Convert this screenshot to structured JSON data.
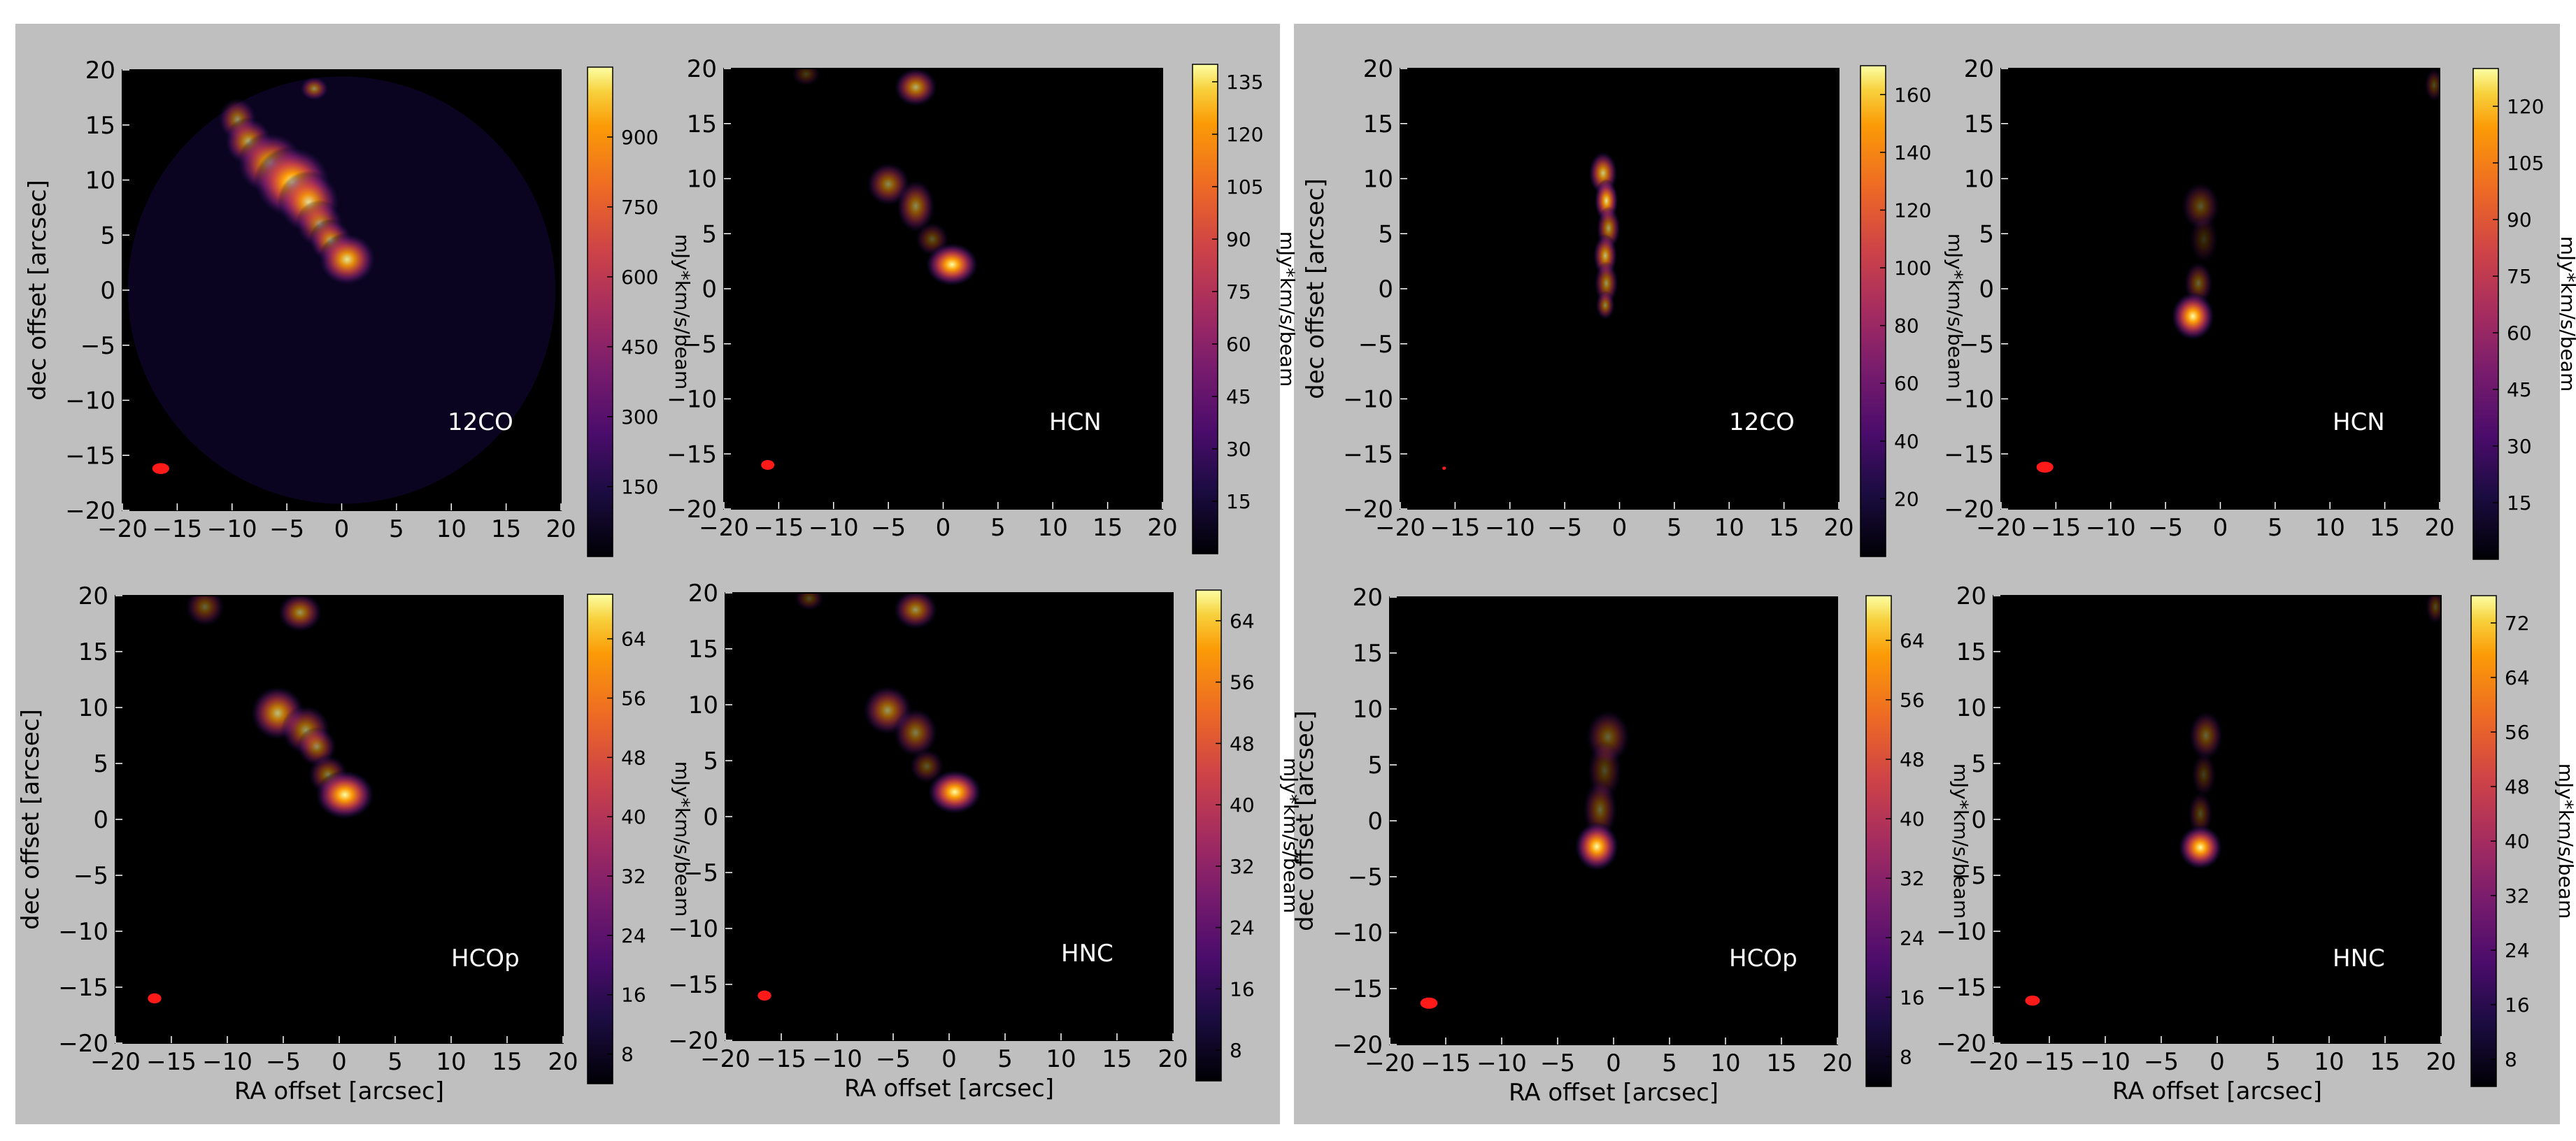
{
  "axis_units": {
    "x_label": "RA offset [arcsec]",
    "y_label": "dec offset [arcsec]",
    "colorbar_label": "mJy*km/s/beam"
  },
  "chart_data": [
    {
      "type": "heatmap",
      "group": "left",
      "row": 0,
      "col": 0,
      "label": "12CO",
      "xlabel": "",
      "ylabel": "dec offset [arcsec]",
      "xlim": [
        -20,
        20
      ],
      "ylim": [
        -20,
        20
      ],
      "x_ticks": [
        "−20",
        "−15",
        "−10",
        "−5",
        "0",
        "5",
        "10",
        "15",
        "20"
      ],
      "y_ticks": [
        "20",
        "15",
        "10",
        "5",
        "0",
        "−5",
        "−10",
        "−15",
        "−20"
      ],
      "colorbar": {
        "ticks": [
          "900",
          "750",
          "600",
          "450",
          "300",
          "150"
        ],
        "tick_values": [
          900,
          750,
          600,
          450,
          300,
          150
        ],
        "range": [
          0,
          1050
        ],
        "label": "mJy*km/s/beam"
      },
      "primary_beam_visible": true,
      "beam": {
        "x": -16.5,
        "y": -16.2,
        "major": 1.4,
        "minor": 1.0
      },
      "emission": [
        {
          "x": -9.5,
          "y": 15.5,
          "sx": 0.8,
          "sy": 0.9,
          "a": 0.55
        },
        {
          "x": -8.5,
          "y": 13.5,
          "sx": 1.0,
          "sy": 1.0,
          "a": 0.7
        },
        {
          "x": -6.5,
          "y": 11.5,
          "sx": 1.4,
          "sy": 1.3,
          "a": 0.85
        },
        {
          "x": -4.5,
          "y": 9.8,
          "sx": 1.6,
          "sy": 1.5,
          "a": 1.0
        },
        {
          "x": -3.0,
          "y": 8.0,
          "sx": 1.3,
          "sy": 1.3,
          "a": 0.85
        },
        {
          "x": -2.0,
          "y": 6.0,
          "sx": 1.0,
          "sy": 1.0,
          "a": 0.6
        },
        {
          "x": -1.0,
          "y": 4.5,
          "sx": 0.9,
          "sy": 0.9,
          "a": 0.7
        },
        {
          "x": 0.5,
          "y": 2.8,
          "sx": 1.2,
          "sy": 1.1,
          "a": 0.9
        },
        {
          "x": -2.5,
          "y": 18.3,
          "sx": 0.6,
          "sy": 0.5,
          "a": 0.55
        }
      ]
    },
    {
      "type": "heatmap",
      "group": "left",
      "row": 0,
      "col": 1,
      "label": "HCN",
      "xlabel": "",
      "ylabel": "",
      "xlim": [
        -20,
        20
      ],
      "ylim": [
        -20,
        20
      ],
      "x_ticks": [
        "−20",
        "−15",
        "−10",
        "−5",
        "0",
        "5",
        "10",
        "15",
        "20"
      ],
      "y_ticks": [
        "20",
        "15",
        "10",
        "5",
        "0",
        "−5",
        "−10",
        "−15",
        "−20"
      ],
      "colorbar": {
        "ticks": [
          "135",
          "120",
          "105",
          "90",
          "75",
          "60",
          "45",
          "30",
          "15"
        ],
        "tick_values": [
          135,
          120,
          105,
          90,
          75,
          60,
          45,
          30,
          15
        ],
        "range": [
          0,
          140
        ],
        "label": "mJy*km/s/beam"
      },
      "primary_beam_visible": false,
      "beam": {
        "x": -16.0,
        "y": -16.0,
        "major": 1.1,
        "minor": 0.9
      },
      "emission": [
        {
          "x": -2.5,
          "y": 18.3,
          "sx": 0.9,
          "sy": 0.8,
          "a": 0.7
        },
        {
          "x": -5.0,
          "y": 9.5,
          "sx": 0.9,
          "sy": 0.9,
          "a": 0.55
        },
        {
          "x": -2.5,
          "y": 7.5,
          "sx": 0.8,
          "sy": 1.1,
          "a": 0.55
        },
        {
          "x": -1.0,
          "y": 4.5,
          "sx": 0.7,
          "sy": 0.7,
          "a": 0.35
        },
        {
          "x": 0.8,
          "y": 2.2,
          "sx": 1.1,
          "sy": 0.9,
          "a": 1.0
        },
        {
          "x": -12.5,
          "y": 19.5,
          "sx": 0.6,
          "sy": 0.5,
          "a": 0.25
        }
      ]
    },
    {
      "type": "heatmap",
      "group": "left",
      "row": 1,
      "col": 0,
      "label": "HCOp",
      "xlabel": "RA offset [arcsec]",
      "ylabel": "dec offset [arcsec]",
      "xlim": [
        -20,
        20
      ],
      "ylim": [
        -20,
        20
      ],
      "x_ticks": [
        "−20",
        "−15",
        "−10",
        "−5",
        "0",
        "5",
        "10",
        "15",
        "20"
      ],
      "y_ticks": [
        "20",
        "15",
        "10",
        "5",
        "0",
        "−5",
        "−10",
        "−15",
        "−20"
      ],
      "colorbar": {
        "ticks": [
          "64",
          "56",
          "48",
          "40",
          "32",
          "24",
          "16",
          "8"
        ],
        "tick_values": [
          64,
          56,
          48,
          40,
          32,
          24,
          16,
          8
        ],
        "range": [
          4,
          70
        ],
        "label": "mJy*km/s/beam"
      },
      "primary_beam_visible": false,
      "beam": {
        "x": -16.5,
        "y": -16.0,
        "major": 1.1,
        "minor": 0.9
      },
      "emission": [
        {
          "x": -12.0,
          "y": 19.0,
          "sx": 0.8,
          "sy": 0.8,
          "a": 0.4
        },
        {
          "x": -3.5,
          "y": 18.5,
          "sx": 0.9,
          "sy": 0.8,
          "a": 0.6
        },
        {
          "x": -5.5,
          "y": 9.5,
          "sx": 1.1,
          "sy": 1.1,
          "a": 0.75
        },
        {
          "x": -3.0,
          "y": 8.0,
          "sx": 1.0,
          "sy": 1.0,
          "a": 0.6
        },
        {
          "x": -2.0,
          "y": 6.5,
          "sx": 0.8,
          "sy": 0.8,
          "a": 0.55
        },
        {
          "x": -1.0,
          "y": 4.0,
          "sx": 0.8,
          "sy": 0.8,
          "a": 0.5
        },
        {
          "x": 0.5,
          "y": 2.2,
          "sx": 1.2,
          "sy": 1.0,
          "a": 1.0
        }
      ]
    },
    {
      "type": "heatmap",
      "group": "left",
      "row": 1,
      "col": 1,
      "label": "HNC",
      "xlabel": "RA offset [arcsec]",
      "ylabel": "",
      "xlim": [
        -20,
        20
      ],
      "ylim": [
        -20,
        20
      ],
      "x_ticks": [
        "−20",
        "−15",
        "−10",
        "−5",
        "0",
        "5",
        "10",
        "15",
        "20"
      ],
      "y_ticks": [
        "20",
        "15",
        "10",
        "5",
        "0",
        "−5",
        "−10",
        "−15",
        "−20"
      ],
      "colorbar": {
        "ticks": [
          "64",
          "56",
          "48",
          "40",
          "32",
          "24",
          "16",
          "8"
        ],
        "tick_values": [
          64,
          56,
          48,
          40,
          32,
          24,
          16,
          8
        ],
        "range": [
          4,
          68
        ],
        "label": "mJy*km/s/beam"
      },
      "primary_beam_visible": false,
      "beam": {
        "x": -16.5,
        "y": -16.0,
        "major": 1.1,
        "minor": 0.9
      },
      "emission": [
        {
          "x": -12.5,
          "y": 19.5,
          "sx": 0.6,
          "sy": 0.5,
          "a": 0.3
        },
        {
          "x": -3.0,
          "y": 18.5,
          "sx": 0.9,
          "sy": 0.8,
          "a": 0.6
        },
        {
          "x": -5.5,
          "y": 9.5,
          "sx": 1.0,
          "sy": 1.0,
          "a": 0.6
        },
        {
          "x": -3.0,
          "y": 7.5,
          "sx": 0.9,
          "sy": 1.0,
          "a": 0.5
        },
        {
          "x": -2.0,
          "y": 4.5,
          "sx": 0.7,
          "sy": 0.7,
          "a": 0.35
        },
        {
          "x": 0.5,
          "y": 2.2,
          "sx": 1.1,
          "sy": 0.9,
          "a": 1.0
        }
      ]
    },
    {
      "type": "heatmap",
      "group": "right",
      "row": 0,
      "col": 0,
      "label": "12CO",
      "xlabel": "",
      "ylabel": "dec offset [arcsec]",
      "xlim": [
        -20,
        20
      ],
      "ylim": [
        -20,
        20
      ],
      "x_ticks": [
        "−20",
        "−15",
        "−10",
        "−5",
        "0",
        "5",
        "10",
        "15",
        "20"
      ],
      "y_ticks": [
        "20",
        "15",
        "10",
        "5",
        "0",
        "−5",
        "−10",
        "−15",
        "−20"
      ],
      "colorbar": {
        "ticks": [
          "160",
          "140",
          "120",
          "100",
          "80",
          "60",
          "40",
          "20"
        ],
        "tick_values": [
          160,
          140,
          120,
          100,
          80,
          60,
          40,
          20
        ],
        "range": [
          0,
          170
        ],
        "label": "mJy*km/s/beam"
      },
      "primary_beam_visible": false,
      "beam": {
        "x": -16.0,
        "y": -16.3,
        "major": 0.3,
        "minor": 0.3
      },
      "emission": [
        {
          "x": -1.5,
          "y": 10.5,
          "sx": 0.6,
          "sy": 0.9,
          "a": 0.8
        },
        {
          "x": -1.2,
          "y": 8.0,
          "sx": 0.5,
          "sy": 0.9,
          "a": 0.9
        },
        {
          "x": -1.0,
          "y": 5.5,
          "sx": 0.5,
          "sy": 0.9,
          "a": 0.65
        },
        {
          "x": -1.3,
          "y": 3.0,
          "sx": 0.5,
          "sy": 0.9,
          "a": 0.75
        },
        {
          "x": -1.2,
          "y": 0.5,
          "sx": 0.5,
          "sy": 0.9,
          "a": 0.6
        },
        {
          "x": -1.3,
          "y": -1.5,
          "sx": 0.4,
          "sy": 0.6,
          "a": 0.55
        }
      ]
    },
    {
      "type": "heatmap",
      "group": "right",
      "row": 0,
      "col": 1,
      "label": "HCN",
      "xlabel": "",
      "ylabel": "",
      "xlim": [
        -20,
        20
      ],
      "ylim": [
        -20,
        20
      ],
      "x_ticks": [
        "−20",
        "−15",
        "−10",
        "−5",
        "0",
        "5",
        "10",
        "15",
        "20"
      ],
      "y_ticks": [
        "20",
        "15",
        "10",
        "5",
        "0",
        "−5",
        "−10",
        "−15",
        "−20"
      ],
      "colorbar": {
        "ticks": [
          "120",
          "105",
          "90",
          "75",
          "60",
          "45",
          "30",
          "15"
        ],
        "tick_values": [
          120,
          105,
          90,
          75,
          60,
          45,
          30,
          15
        ],
        "range": [
          0,
          130
        ],
        "label": "mJy*km/s/beam"
      },
      "primary_beam_visible": false,
      "beam": {
        "x": -16.0,
        "y": -16.2,
        "major": 1.4,
        "minor": 1.0
      },
      "emission": [
        {
          "x": -1.8,
          "y": 7.5,
          "sx": 0.8,
          "sy": 1.0,
          "a": 0.35
        },
        {
          "x": -1.5,
          "y": 4.5,
          "sx": 0.6,
          "sy": 1.0,
          "a": 0.2
        },
        {
          "x": -2.0,
          "y": 0.5,
          "sx": 0.6,
          "sy": 0.9,
          "a": 0.4
        },
        {
          "x": -2.5,
          "y": -2.5,
          "sx": 0.9,
          "sy": 1.0,
          "a": 1.0
        },
        {
          "x": 19.5,
          "y": 18.5,
          "sx": 0.4,
          "sy": 0.7,
          "a": 0.3
        }
      ]
    },
    {
      "type": "heatmap",
      "group": "right",
      "row": 1,
      "col": 0,
      "label": "HCOp",
      "xlabel": "RA offset [arcsec]",
      "ylabel": "dec offset [arcsec]",
      "xlim": [
        -20,
        20
      ],
      "ylim": [
        -20,
        20
      ],
      "x_ticks": [
        "−20",
        "−15",
        "−10",
        "−5",
        "0",
        "5",
        "10",
        "15",
        "20"
      ],
      "y_ticks": [
        "20",
        "15",
        "10",
        "5",
        "0",
        "−5",
        "−10",
        "−15",
        "−20"
      ],
      "colorbar": {
        "ticks": [
          "64",
          "56",
          "48",
          "40",
          "32",
          "24",
          "16",
          "8"
        ],
        "tick_values": [
          64,
          56,
          48,
          40,
          32,
          24,
          16,
          8
        ],
        "range": [
          4,
          70
        ],
        "label": "mJy*km/s/beam"
      },
      "primary_beam_visible": false,
      "beam": {
        "x": -16.5,
        "y": -16.3,
        "major": 1.4,
        "minor": 1.0
      },
      "emission": [
        {
          "x": -0.5,
          "y": 7.5,
          "sx": 0.9,
          "sy": 1.1,
          "a": 0.4
        },
        {
          "x": -0.8,
          "y": 4.5,
          "sx": 0.7,
          "sy": 1.2,
          "a": 0.3
        },
        {
          "x": -1.2,
          "y": 1.0,
          "sx": 0.7,
          "sy": 1.2,
          "a": 0.4
        },
        {
          "x": -1.5,
          "y": -2.3,
          "sx": 0.9,
          "sy": 1.0,
          "a": 1.0
        }
      ]
    },
    {
      "type": "heatmap",
      "group": "right",
      "row": 1,
      "col": 1,
      "label": "HNC",
      "xlabel": "RA offset [arcsec]",
      "ylabel": "",
      "xlim": [
        -20,
        20
      ],
      "ylim": [
        -20,
        20
      ],
      "x_ticks": [
        "−20",
        "−15",
        "−10",
        "−5",
        "0",
        "5",
        "10",
        "15",
        "20"
      ],
      "y_ticks": [
        "20",
        "15",
        "10",
        "5",
        "0",
        "−5",
        "−10",
        "−15",
        "−20"
      ],
      "colorbar": {
        "ticks": [
          "72",
          "64",
          "56",
          "48",
          "40",
          "32",
          "24",
          "16",
          "8"
        ],
        "tick_values": [
          72,
          64,
          56,
          48,
          40,
          32,
          24,
          16,
          8
        ],
        "range": [
          4,
          76
        ],
        "label": "mJy*km/s/beam"
      },
      "primary_beam_visible": false,
      "beam": {
        "x": -16.5,
        "y": -16.2,
        "major": 1.2,
        "minor": 0.9
      },
      "emission": [
        {
          "x": -1.0,
          "y": 7.5,
          "sx": 0.7,
          "sy": 1.0,
          "a": 0.4
        },
        {
          "x": -1.2,
          "y": 4.0,
          "sx": 0.5,
          "sy": 0.9,
          "a": 0.25
        },
        {
          "x": -1.5,
          "y": 0.5,
          "sx": 0.5,
          "sy": 0.9,
          "a": 0.3
        },
        {
          "x": -1.5,
          "y": -2.5,
          "sx": 0.9,
          "sy": 0.9,
          "a": 1.0
        },
        {
          "x": 19.5,
          "y": 19.0,
          "sx": 0.4,
          "sy": 0.7,
          "a": 0.3
        }
      ]
    }
  ],
  "colors": {
    "figure_background": "#bfbfbf",
    "plot_background": "#000000",
    "beam": "#ff1a1a",
    "label_text": "#ffffff"
  },
  "colormap": "inferno"
}
